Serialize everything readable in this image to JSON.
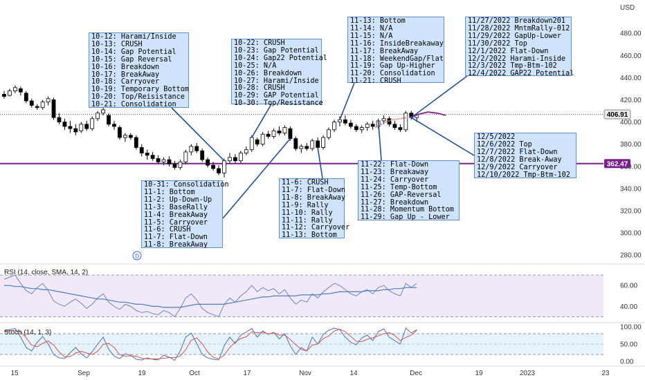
{
  "chart_data": [
    {
      "type": "candlestick",
      "axis_currency": "USD",
      "y_ticks": [
        "480.00",
        "460.00",
        "440.00",
        "420.00",
        "400.00",
        "380.00",
        "360.00",
        "340.00",
        "320.00",
        "300.00",
        "280.00"
      ],
      "ylim": [
        272,
        510
      ],
      "x_ticks": [
        "15",
        "Sep",
        "19",
        "Oct",
        "17",
        "Nov",
        "14",
        "Dec",
        "19",
        "2023",
        "23"
      ],
      "last_price_label": "406.91",
      "last_price": 406.91,
      "support_label": "362.47",
      "support_level": 362.47,
      "dividend_marker": "D",
      "candles": [
        {
          "o": 425,
          "h": 428,
          "l": 421,
          "c": 423
        },
        {
          "o": 424,
          "h": 430,
          "l": 423,
          "c": 428
        },
        {
          "o": 428,
          "h": 433,
          "l": 426,
          "c": 431
        },
        {
          "o": 430,
          "h": 432,
          "l": 424,
          "c": 427
        },
        {
          "o": 426,
          "h": 428,
          "l": 417,
          "c": 419
        },
        {
          "o": 419,
          "h": 421,
          "l": 413,
          "c": 415
        },
        {
          "o": 414,
          "h": 416,
          "l": 411,
          "c": 413
        },
        {
          "o": 413,
          "h": 420,
          "l": 411,
          "c": 418
        },
        {
          "o": 418,
          "h": 423,
          "l": 415,
          "c": 421
        },
        {
          "o": 420,
          "h": 422,
          "l": 402,
          "c": 404
        },
        {
          "o": 404,
          "h": 408,
          "l": 398,
          "c": 400
        },
        {
          "o": 400,
          "h": 403,
          "l": 393,
          "c": 396
        },
        {
          "o": 396,
          "h": 401,
          "l": 390,
          "c": 394
        },
        {
          "o": 394,
          "h": 398,
          "l": 388,
          "c": 391
        },
        {
          "o": 392,
          "h": 400,
          "l": 390,
          "c": 398
        },
        {
          "o": 398,
          "h": 401,
          "l": 392,
          "c": 394
        },
        {
          "o": 394,
          "h": 405,
          "l": 392,
          "c": 403
        },
        {
          "o": 403,
          "h": 410,
          "l": 401,
          "c": 408
        },
        {
          "o": 408,
          "h": 413,
          "l": 406,
          "c": 411
        },
        {
          "o": 406,
          "h": 408,
          "l": 396,
          "c": 398
        },
        {
          "o": 398,
          "h": 401,
          "l": 393,
          "c": 396
        },
        {
          "o": 395,
          "h": 397,
          "l": 384,
          "c": 386
        },
        {
          "o": 386,
          "h": 390,
          "l": 382,
          "c": 388
        },
        {
          "o": 388,
          "h": 390,
          "l": 384,
          "c": 386
        },
        {
          "o": 386,
          "h": 388,
          "l": 375,
          "c": 377
        },
        {
          "o": 377,
          "h": 380,
          "l": 369,
          "c": 372
        },
        {
          "o": 372,
          "h": 375,
          "l": 366,
          "c": 370
        },
        {
          "o": 370,
          "h": 373,
          "l": 365,
          "c": 367
        },
        {
          "o": 367,
          "h": 370,
          "l": 362,
          "c": 364
        },
        {
          "o": 364,
          "h": 368,
          "l": 361,
          "c": 366
        },
        {
          "o": 366,
          "h": 369,
          "l": 360,
          "c": 362
        },
        {
          "o": 362,
          "h": 365,
          "l": 357,
          "c": 359
        },
        {
          "o": 359,
          "h": 366,
          "l": 357,
          "c": 364
        },
        {
          "o": 364,
          "h": 375,
          "l": 362,
          "c": 373
        },
        {
          "o": 373,
          "h": 380,
          "l": 370,
          "c": 378
        },
        {
          "o": 378,
          "h": 381,
          "l": 372,
          "c": 374
        },
        {
          "o": 374,
          "h": 376,
          "l": 364,
          "c": 366
        },
        {
          "o": 366,
          "h": 368,
          "l": 359,
          "c": 361
        },
        {
          "o": 361,
          "h": 364,
          "l": 356,
          "c": 358
        },
        {
          "o": 358,
          "h": 361,
          "l": 352,
          "c": 354
        },
        {
          "o": 354,
          "h": 367,
          "l": 350,
          "c": 365
        },
        {
          "o": 365,
          "h": 372,
          "l": 363,
          "c": 368
        },
        {
          "o": 368,
          "h": 371,
          "l": 363,
          "c": 365
        },
        {
          "o": 365,
          "h": 374,
          "l": 363,
          "c": 372
        },
        {
          "o": 372,
          "h": 378,
          "l": 370,
          "c": 375
        },
        {
          "o": 375,
          "h": 388,
          "l": 373,
          "c": 386
        },
        {
          "o": 384,
          "h": 386,
          "l": 378,
          "c": 380
        },
        {
          "o": 380,
          "h": 391,
          "l": 378,
          "c": 389
        },
        {
          "o": 389,
          "h": 392,
          "l": 385,
          "c": 387
        },
        {
          "o": 387,
          "h": 394,
          "l": 385,
          "c": 392
        },
        {
          "o": 392,
          "h": 396,
          "l": 388,
          "c": 390
        },
        {
          "o": 390,
          "h": 397,
          "l": 388,
          "c": 395
        },
        {
          "o": 394,
          "h": 396,
          "l": 383,
          "c": 385
        },
        {
          "o": 385,
          "h": 387,
          "l": 374,
          "c": 376
        },
        {
          "o": 376,
          "h": 380,
          "l": 372,
          "c": 378
        },
        {
          "o": 378,
          "h": 381,
          "l": 374,
          "c": 376
        },
        {
          "o": 376,
          "h": 385,
          "l": 374,
          "c": 383
        },
        {
          "o": 383,
          "h": 386,
          "l": 375,
          "c": 377
        },
        {
          "o": 377,
          "h": 388,
          "l": 375,
          "c": 386
        },
        {
          "o": 386,
          "h": 395,
          "l": 384,
          "c": 393
        },
        {
          "o": 393,
          "h": 402,
          "l": 391,
          "c": 400
        },
        {
          "o": 400,
          "h": 405,
          "l": 396,
          "c": 402
        },
        {
          "o": 402,
          "h": 406,
          "l": 397,
          "c": 399
        },
        {
          "o": 399,
          "h": 402,
          "l": 394,
          "c": 396
        },
        {
          "o": 396,
          "h": 398,
          "l": 391,
          "c": 393
        },
        {
          "o": 393,
          "h": 397,
          "l": 390,
          "c": 395
        },
        {
          "o": 395,
          "h": 400,
          "l": 392,
          "c": 398
        },
        {
          "o": 398,
          "h": 401,
          "l": 393,
          "c": 396
        },
        {
          "o": 396,
          "h": 403,
          "l": 394,
          "c": 401
        },
        {
          "o": 401,
          "h": 406,
          "l": 398,
          "c": 403
        },
        {
          "o": 403,
          "h": 405,
          "l": 396,
          "c": 398
        },
        {
          "o": 398,
          "h": 401,
          "l": 393,
          "c": 395
        },
        {
          "o": 395,
          "h": 398,
          "l": 391,
          "c": 393
        },
        {
          "o": 393,
          "h": 410,
          "l": 391,
          "c": 408
        },
        {
          "o": 408,
          "h": 410,
          "l": 402,
          "c": 404
        },
        {
          "o": 404,
          "h": 408,
          "l": 400,
          "c": 406.91
        }
      ],
      "projection": [
        404,
        407,
        409,
        408,
        406
      ],
      "projection2": [
        395,
        399,
        402,
        403,
        404
      ]
    },
    {
      "type": "line",
      "legend": "RSI (14, close, SMA, 14, 2)",
      "y_ticks": [
        "60.00",
        "40.00"
      ],
      "ylim": [
        25,
        80
      ],
      "band": [
        30,
        70
      ],
      "series": [
        {
          "values": [
            66,
            68,
            70,
            62,
            55,
            52,
            58,
            62,
            55,
            45,
            42,
            40,
            44,
            47,
            43,
            38,
            42,
            48,
            52,
            44,
            40,
            37,
            42,
            40,
            36,
            34,
            35,
            33,
            32,
            36,
            34,
            30,
            38,
            48,
            52,
            46,
            38,
            34,
            32,
            30,
            42,
            48,
            44,
            50,
            54,
            60,
            54,
            58,
            55,
            57,
            52,
            56,
            48,
            42,
            46,
            44,
            52,
            48,
            54,
            58,
            62,
            60,
            56,
            52,
            50,
            54,
            56,
            52,
            58,
            60,
            55,
            52,
            50,
            62,
            58,
            62
          ]
        },
        {
          "values": [
            60,
            60,
            59,
            59,
            58,
            57,
            57,
            56,
            56,
            55,
            54,
            53,
            52,
            51,
            50,
            49,
            48,
            47,
            47,
            46,
            45,
            44,
            44,
            43,
            42,
            42,
            41,
            40,
            40,
            39,
            39,
            39,
            39,
            40,
            41,
            42,
            42,
            42,
            42,
            42,
            42,
            43,
            44,
            45,
            46,
            47,
            48,
            49,
            49,
            50,
            50,
            50,
            50,
            50,
            51,
            51,
            51,
            51,
            52,
            52,
            53,
            54,
            54,
            54,
            54,
            54,
            55,
            55,
            55,
            56,
            56,
            57,
            57,
            58,
            58,
            58
          ]
        }
      ]
    },
    {
      "type": "line",
      "legend": "Stoch (14, 1, 3)",
      "y_ticks": [
        "100.00",
        "50.00",
        "0.00"
      ],
      "ylim": [
        -10,
        110
      ],
      "band": [
        20,
        80
      ],
      "series": [
        {
          "values": [
            88,
            92,
            95,
            70,
            40,
            30,
            55,
            72,
            50,
            20,
            10,
            8,
            25,
            40,
            22,
            10,
            28,
            50,
            70,
            35,
            15,
            8,
            22,
            18,
            6,
            4,
            10,
            6,
            4,
            18,
            12,
            3,
            30,
            70,
            82,
            52,
            20,
            10,
            6,
            4,
            45,
            70,
            52,
            76,
            85,
            95,
            70,
            88,
            78,
            84,
            65,
            80,
            45,
            20,
            40,
            30,
            70,
            50,
            78,
            90,
            96,
            92,
            70,
            55,
            48,
            68,
            76,
            60,
            86,
            94,
            70,
            60,
            50,
            96,
            82,
            92
          ]
        },
        {
          "values": [
            85,
            88,
            90,
            86,
            68,
            47,
            42,
            52,
            59,
            47,
            27,
            13,
            14,
            24,
            29,
            24,
            20,
            29,
            49,
            52,
            40,
            19,
            15,
            16,
            15,
            9,
            7,
            7,
            7,
            9,
            11,
            11,
            15,
            34,
            61,
            68,
            51,
            27,
            12,
            7,
            18,
            40,
            56,
            66,
            71,
            85,
            83,
            84,
            79,
            83,
            76,
            76,
            63,
            48,
            35,
            30,
            47,
            50,
            66,
            73,
            88,
            93,
            86,
            72,
            58,
            57,
            64,
            68,
            74,
            80,
            83,
            75,
            60,
            69,
            76,
            90
          ]
        }
      ]
    }
  ],
  "annotations": [
    {
      "lines": [
        "10-12: Harami/Inside",
        "10-13: CRUSH",
        "10-14: Gap Potential",
        "10-15: Gap Reversal",
        "10-16: Breakdown",
        "10-17: BreakAway",
        "10-18: Carryover",
        "10-19: Temporary Bottom",
        "10-20: Top/Reisistance",
        "10-21: Consolidation"
      ]
    },
    {
      "lines": [
        "10-22: CRUSH",
        "10-23: Gap Potential",
        "10-24: Gap22 Potential",
        "10-25: N/A",
        "10-26: Breakdown",
        "10-27: Harami/Inside",
        "10-28: CRUSH",
        "10-29: GAP Potential",
        "10-30: Top/Resistance"
      ]
    },
    {
      "lines": [
        "11-13: Bottom",
        "11-14: N/A",
        "11-15: N/A",
        "11-16: InsideBreakaway",
        "11-17: BreakAway",
        "11-18: WeekendGap/Flat",
        "11-19: Gap Up-Higher",
        "11-20: Consolidation",
        "11-21: CRUSH"
      ]
    },
    {
      "lines": [
        "11/27/2022 Breakdown201",
        "11/28/2022 MntmRally-012",
        "11/29/2022 GapUp-Lower",
        "11/30/2022 Top",
        "12/1/2022 Flat-Down",
        "12/2/2022 Harami-Inside",
        "12/3/2022 Tmp-Btm-102",
        "12/4/2022 GAP22 Potential"
      ]
    },
    {
      "lines": [
        "10-31: Consolidation",
        "11-1: Bottom",
        "11-2: Up-Down-Up",
        "11-3: BaseRally",
        "11-4: BreakAway",
        "11-5: Carryover",
        "11-6: CRUSH",
        "11-7: Flat-Down",
        "11-8: BreakAway"
      ]
    },
    {
      "lines": [
        "11-6: CRUSH",
        "11-7: Flat-Down",
        "11-8: BreakAway",
        "11-9: Rally",
        "11-10: Rally",
        "11-11: Rally",
        "11-12: Carryover",
        "11-13: Bottom"
      ]
    },
    {
      "lines": [
        "11-22: Flat-Down",
        "11-23: Breakaway",
        "11-24: Carryover",
        "11-25: Temp-Bottom",
        "11-26: GAP-Reversal",
        "11-27: Breakdown",
        "11-28: Momentum Bottom",
        "11-29: Gap Up - Lower"
      ]
    },
    {
      "lines": [
        "12/5/2022",
        "12/6/2022 Top",
        "12/7/2022 Flat-Down",
        "12/8/2022 Break-Away",
        "12/9/2022 Carryover",
        "12/10/2022 Tmp-Btm-102"
      ]
    }
  ],
  "colors": {
    "up": "#ffffff",
    "down": "#000000",
    "wick": "#000000",
    "support": "#7b1f8f",
    "projection": "#8a2c8a",
    "projection2": "#d98c8c",
    "rsi": "#6a86c4",
    "rsi_ma": "#4a7fc0",
    "stoch_k": "#4a6fc0",
    "stoch_d": "#d9534f",
    "note_bg": "#cfe3fb",
    "note_border": "#5b8fd0",
    "connector": "#1f4f9a"
  }
}
